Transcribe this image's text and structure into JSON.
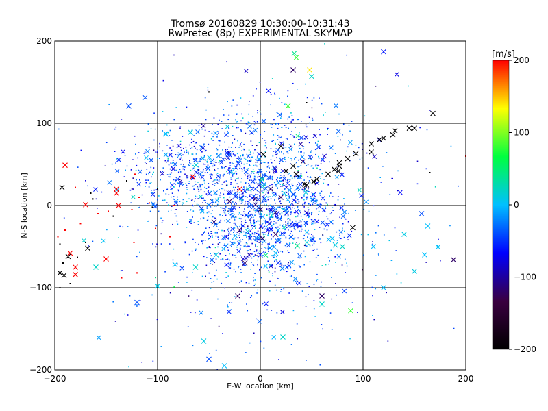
{
  "chart_data": {
    "type": "scatter",
    "title_line1": "Tromsø 20160829 10:30:00-10:31:43",
    "title_line2": "RwPretec (8p) EXPERIMENTAL SKYMAP",
    "xlabel": "E-W location [km]",
    "ylabel": "N-S location [km]",
    "xlim": [
      -200,
      200
    ],
    "ylim": [
      -200,
      200
    ],
    "x_ticks": [
      -200,
      -100,
      0,
      100,
      200
    ],
    "y_ticks": [
      -200,
      -100,
      0,
      100,
      200
    ],
    "x_tick_labels": [
      "−200",
      "−100",
      "0",
      "100",
      "200"
    ],
    "y_tick_labels": [
      "−200",
      "−100",
      "0",
      "100",
      "200"
    ],
    "grid": true,
    "grid_lines": [
      -100,
      0,
      100
    ],
    "colorbar": {
      "unit_label": "[m/s]",
      "range": [
        -200,
        200
      ],
      "ticks": [
        -200,
        -100,
        0,
        100,
        200
      ],
      "tick_labels": [
        "−200",
        "−100",
        "0",
        "100",
        "200"
      ],
      "colors": [
        "#000000",
        "#3a0040",
        "#0000ff",
        "#00c0ff",
        "#00ff40",
        "#ffff00",
        "#ff0000"
      ]
    },
    "marker_legend": {
      "large_cross": "cross marker",
      "small_dot": "dot marker"
    },
    "cross_points": [
      {
        "x": -190,
        "y": 49,
        "v": 200
      },
      {
        "x": -193,
        "y": 22,
        "v": -200
      },
      {
        "x": -170,
        "y": 1,
        "v": 200
      },
      {
        "x": -140,
        "y": 20,
        "v": 200
      },
      {
        "x": -150,
        "y": -65,
        "v": 200
      },
      {
        "x": -180,
        "y": -84,
        "v": 200
      },
      {
        "x": -195,
        "y": -82,
        "v": -200
      },
      {
        "x": -187,
        "y": -62,
        "v": -200
      },
      {
        "x": -168,
        "y": -52,
        "v": -200
      },
      {
        "x": -191,
        "y": -85,
        "v": -200
      },
      {
        "x": -185,
        "y": -58,
        "v": 200
      },
      {
        "x": -140,
        "y": 15,
        "v": 200
      },
      {
        "x": -138,
        "y": 0,
        "v": 200
      },
      {
        "x": 3,
        "y": 62,
        "v": -200
      },
      {
        "x": 20,
        "y": 72,
        "v": -200
      },
      {
        "x": 32,
        "y": 48,
        "v": -200
      },
      {
        "x": 25,
        "y": 42,
        "v": -200
      },
      {
        "x": 35,
        "y": 38,
        "v": -200
      },
      {
        "x": 43,
        "y": 26,
        "v": -200
      },
      {
        "x": 45,
        "y": 25,
        "v": -200
      },
      {
        "x": 55,
        "y": 32,
        "v": -200
      },
      {
        "x": 52,
        "y": 29,
        "v": -200
      },
      {
        "x": 66,
        "y": 38,
        "v": -200
      },
      {
        "x": 72,
        "y": 44,
        "v": -200
      },
      {
        "x": 76,
        "y": 42,
        "v": -200
      },
      {
        "x": 77,
        "y": 48,
        "v": -200
      },
      {
        "x": 77,
        "y": 52,
        "v": -200
      },
      {
        "x": 85,
        "y": 57,
        "v": -200
      },
      {
        "x": 93,
        "y": 63,
        "v": -200
      },
      {
        "x": 108,
        "y": 65,
        "v": -200
      },
      {
        "x": 108,
        "y": 75,
        "v": -200
      },
      {
        "x": 116,
        "y": 80,
        "v": -200
      },
      {
        "x": 120,
        "y": 82,
        "v": -200
      },
      {
        "x": 129,
        "y": 86,
        "v": -200
      },
      {
        "x": 131,
        "y": 91,
        "v": -200
      },
      {
        "x": 145,
        "y": 94,
        "v": -200
      },
      {
        "x": 150,
        "y": 94,
        "v": -200
      },
      {
        "x": 168,
        "y": 112,
        "v": -200
      },
      {
        "x": 90,
        "y": -27,
        "v": -200
      },
      {
        "x": 33,
        "y": 185,
        "v": 40
      },
      {
        "x": 35,
        "y": 180,
        "v": 80
      },
      {
        "x": 32,
        "y": 165,
        "v": -120
      },
      {
        "x": 48,
        "y": 165,
        "v": 140
      },
      {
        "x": 50,
        "y": 157,
        "v": 20
      },
      {
        "x": 120,
        "y": 187,
        "v": -60
      },
      {
        "x": -128,
        "y": 121,
        "v": -40
      },
      {
        "x": -92,
        "y": 87,
        "v": 0
      },
      {
        "x": -68,
        "y": 89,
        "v": 10
      },
      {
        "x": 27,
        "y": 121,
        "v": 80
      },
      {
        "x": -66,
        "y": 35,
        "v": 200
      },
      {
        "x": 188,
        "y": -66,
        "v": -120
      },
      {
        "x": 163,
        "y": -25,
        "v": 0
      },
      {
        "x": 157,
        "y": -10,
        "v": -40
      },
      {
        "x": -120,
        "y": -118,
        "v": -40
      },
      {
        "x": -100,
        "y": -98,
        "v": 0
      },
      {
        "x": 88,
        "y": -128,
        "v": 80
      },
      {
        "x": 60,
        "y": -110,
        "v": -120
      },
      {
        "x": 60,
        "y": -120,
        "v": 20
      },
      {
        "x": 22,
        "y": -160,
        "v": 20
      },
      {
        "x": -50,
        "y": -187,
        "v": -40
      },
      {
        "x": -35,
        "y": -195,
        "v": 0
      },
      {
        "x": -55,
        "y": -165,
        "v": 10
      },
      {
        "x": -22,
        "y": -110,
        "v": -120
      },
      {
        "x": -63,
        "y": -75,
        "v": 20
      },
      {
        "x": -100,
        "y": -98,
        "v": 10
      },
      {
        "x": -83,
        "y": -72,
        "v": 0
      },
      {
        "x": -43,
        "y": -60,
        "v": 10
      },
      {
        "x": -20,
        "y": 20,
        "v": 200
      },
      {
        "x": 15,
        "y": -58,
        "v": 0
      },
      {
        "x": 36,
        "y": -49,
        "v": 40
      },
      {
        "x": 0,
        "y": -60,
        "v": -60
      },
      {
        "x": 15,
        "y": -35,
        "v": -120
      },
      {
        "x": -45,
        "y": -20,
        "v": -120
      },
      {
        "x": -20,
        "y": -30,
        "v": -120
      },
      {
        "x": 0,
        "y": -5,
        "v": -120
      },
      {
        "x": -5,
        "y": 8,
        "v": -120
      },
      {
        "x": 10,
        "y": 20,
        "v": -120
      },
      {
        "x": 2,
        "y": -40,
        "v": -120
      },
      {
        "x": -30,
        "y": 5,
        "v": -120
      },
      {
        "x": 20,
        "y": 10,
        "v": -120
      },
      {
        "x": -15,
        "y": -70,
        "v": -120
      },
      {
        "x": 120,
        "y": -100,
        "v": 0
      },
      {
        "x": 150,
        "y": -80,
        "v": 10
      },
      {
        "x": 160,
        "y": -60,
        "v": 0
      },
      {
        "x": 140,
        "y": -35,
        "v": 10
      },
      {
        "x": 110,
        "y": -50,
        "v": 0
      },
      {
        "x": 80,
        "y": -50,
        "v": 20
      },
      {
        "x": 73,
        "y": -48,
        "v": 10
      },
      {
        "x": 70,
        "y": -40,
        "v": 0
      },
      {
        "x": -160,
        "y": -75,
        "v": 20
      },
      {
        "x": -180,
        "y": -75,
        "v": 200
      }
    ],
    "dot_points": [
      {
        "x": -163,
        "y": 8,
        "v": -200
      },
      {
        "x": -130,
        "y": 30,
        "v": -200
      },
      {
        "x": -125,
        "y": -5,
        "v": 200
      },
      {
        "x": -118,
        "y": 10,
        "v": 200
      },
      {
        "x": -108,
        "y": 3,
        "v": 200
      },
      {
        "x": -105,
        "y": -2,
        "v": -200
      },
      {
        "x": -102,
        "y": -28,
        "v": 200
      },
      {
        "x": -143,
        "y": -13,
        "v": -200
      },
      {
        "x": -148,
        "y": -7,
        "v": 200
      },
      {
        "x": -175,
        "y": -22,
        "v": 200
      },
      {
        "x": -190,
        "y": -30,
        "v": 200
      },
      {
        "x": -197,
        "y": -38,
        "v": 200
      },
      {
        "x": -195,
        "y": -47,
        "v": -200
      },
      {
        "x": -192,
        "y": -70,
        "v": -200
      },
      {
        "x": -178,
        "y": -63,
        "v": -200
      },
      {
        "x": -195,
        "y": -100,
        "v": -200
      },
      {
        "x": -120,
        "y": -82,
        "v": 200
      },
      {
        "x": -135,
        "y": -88,
        "v": 200
      },
      {
        "x": -165,
        "y": 15,
        "v": -200
      },
      {
        "x": -122,
        "y": 38,
        "v": 200
      },
      {
        "x": -100,
        "y": 20,
        "v": -200
      },
      {
        "x": -50,
        "y": 138,
        "v": -200
      },
      {
        "x": 45,
        "y": 125,
        "v": -200
      },
      {
        "x": 165,
        "y": 40,
        "v": -200
      },
      {
        "x": 200,
        "y": 60,
        "v": 200
      },
      {
        "x": -180,
        "y": 22,
        "v": 200
      },
      {
        "x": -158,
        "y": -10,
        "v": 200
      },
      {
        "x": -84,
        "y": 0,
        "v": 200
      },
      {
        "x": -88,
        "y": -38,
        "v": 200
      },
      {
        "x": -123,
        "y": -45,
        "v": 200
      },
      {
        "x": -185,
        "y": -95,
        "v": -200
      },
      {
        "x": -170,
        "y": -45,
        "v": -200
      }
    ],
    "cloud": [
      {
        "cx": 0,
        "cy": -10,
        "sx": 40,
        "sy": 45,
        "n": 1300
      },
      {
        "cx": -70,
        "cy": 40,
        "sx": 35,
        "sy": 25,
        "n": 350
      },
      {
        "cx": 0,
        "cy": 60,
        "sx": 45,
        "sy": 40,
        "n": 400
      },
      {
        "cx": 0,
        "cy": -30,
        "sx": 100,
        "sy": 90,
        "n": 350
      }
    ]
  }
}
